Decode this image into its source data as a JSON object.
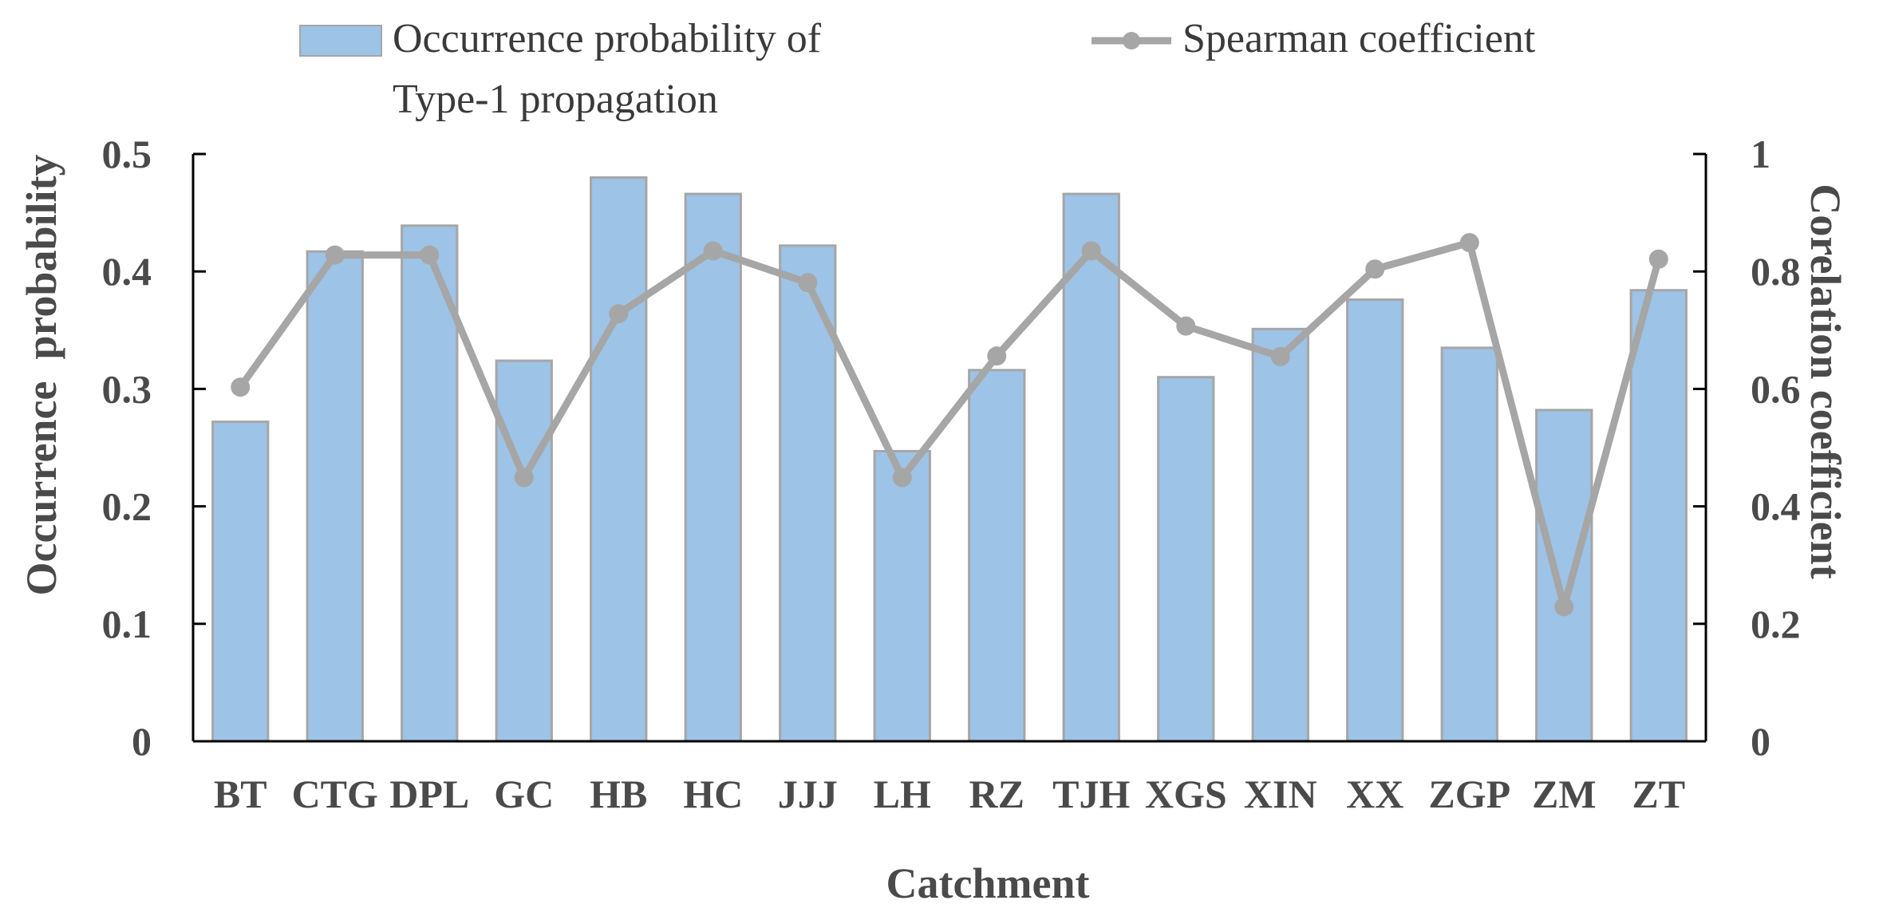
{
  "chart_data": {
    "type": "bar",
    "categories": [
      "BT",
      "CTG",
      "DPL",
      "GC",
      "HB",
      "HC",
      "JJJ",
      "LH",
      "RZ",
      "TJH",
      "XGS",
      "XIN",
      "XX",
      "ZGP",
      "ZM",
      "ZT"
    ],
    "series": [
      {
        "name_lines": [
          "Occurrence probability of",
          "Type-1 propagation"
        ],
        "type": "bar",
        "axis": "left",
        "values": [
          0.272,
          0.417,
          0.439,
          0.324,
          0.48,
          0.466,
          0.422,
          0.247,
          0.316,
          0.466,
          0.31,
          0.351,
          0.376,
          0.335,
          0.282,
          0.384
        ]
      },
      {
        "name": "Spearman coefficient",
        "type": "line",
        "axis": "right",
        "values": [
          0.603,
          0.828,
          0.828,
          0.449,
          0.728,
          0.835,
          0.781,
          0.449,
          0.656,
          0.835,
          0.707,
          0.655,
          0.804,
          0.849,
          0.229,
          0.821
        ]
      }
    ],
    "xlabel": "Catchment",
    "ylabel": "Occurrence  probability",
    "y2label": "Corelation coefficient",
    "ylim": [
      0,
      0.5
    ],
    "y2lim": [
      0,
      1
    ],
    "yticks": [
      "0",
      "0.1",
      "0.2",
      "0.3",
      "0.4",
      "0.5"
    ],
    "y2ticks": [
      "0",
      "0.2",
      "0.4",
      "0.6",
      "0.8",
      "1"
    ],
    "legend_position": "top",
    "grid": false,
    "colors": {
      "bar_fill": "#9dc3e6",
      "bar_stroke": "#a6a6a6",
      "line": "#a6a6a6",
      "axis": "#000000",
      "text": "#4a4a4a"
    }
  }
}
